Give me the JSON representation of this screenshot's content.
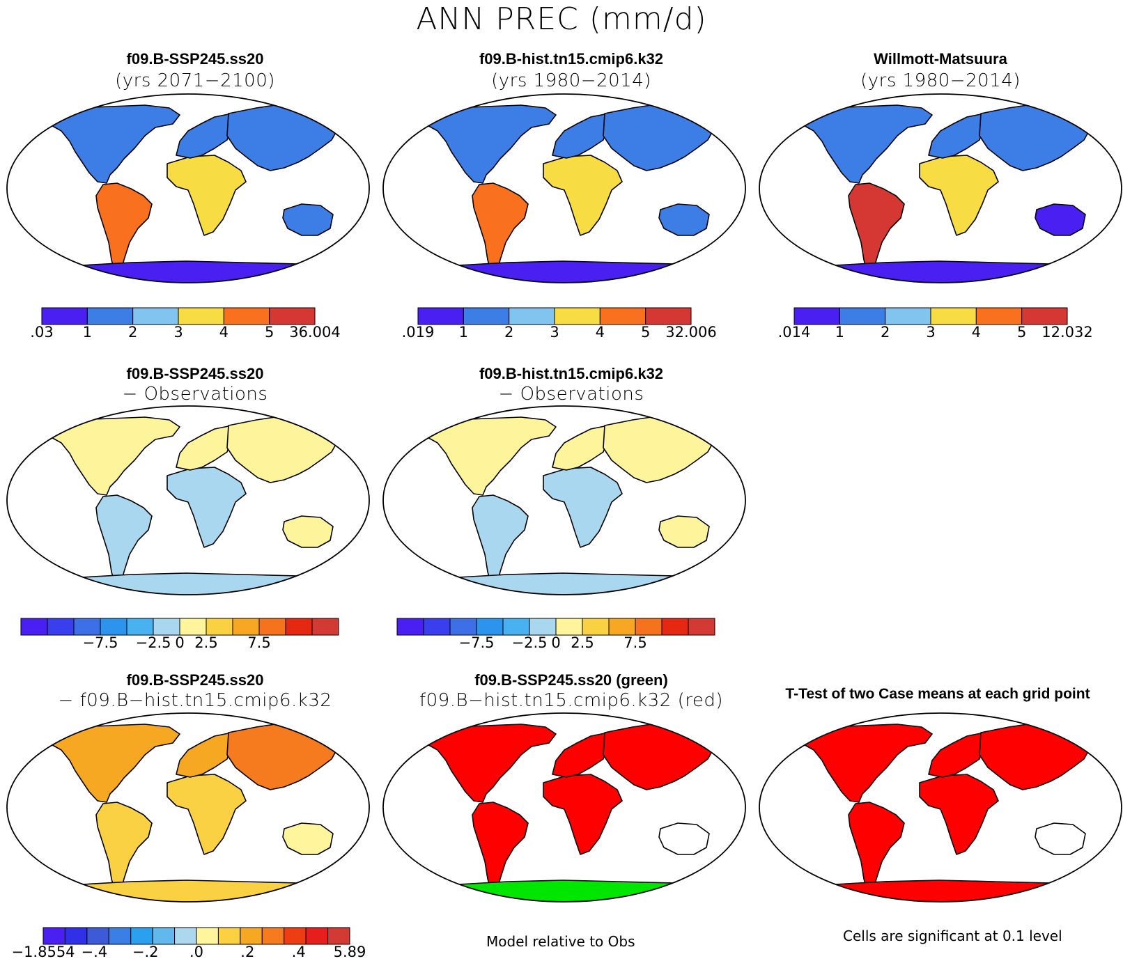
{
  "main_title": "ANN PREC (mm/d)",
  "colors": {
    "seq": [
      "#4a1ff2",
      "#3d7de6",
      "#80c4ef",
      "#f8dc44",
      "#f9701e",
      "#d53833"
    ],
    "div": [
      "#4a1ff2",
      "#3a3fee",
      "#3d6fe7",
      "#2d94ee",
      "#48b1f0",
      "#a9d7ef",
      "#fdf49c",
      "#fbd144",
      "#f6a823",
      "#f5731d",
      "#e42812",
      "#d33a33"
    ],
    "diff": [
      "#4a1ff2",
      "#3030e8",
      "#3d5ad9",
      "#3a7fe5",
      "#2aa0ef",
      "#61b8ec",
      "#acd7ee",
      "#fff59d",
      "#fbd144",
      "#f7a823",
      "#f57b1e",
      "#ee3d12",
      "#e51e1e",
      "#d33a33"
    ],
    "sig_red": "#ff0000",
    "sig_green": "#00e600"
  },
  "panels": [
    {
      "id": "p1",
      "title": "f09.B-SSP245.ss20",
      "subtitle": "(yrs 2071−2100)",
      "palette": "seq",
      "regions": {
        "na": 1,
        "sa": 4,
        "af": 3,
        "eu": 1,
        "as": 1,
        "au": 1,
        "an": 0
      },
      "colorbar": {
        "labels": [
          ".03",
          "1",
          "2",
          "3",
          "4",
          "5",
          "36.004"
        ]
      }
    },
    {
      "id": "p2",
      "title": "f09.B-hist.tn15.cmip6.k32",
      "subtitle": "(yrs 1980−2014)",
      "palette": "seq",
      "regions": {
        "na": 1,
        "sa": 4,
        "af": 3,
        "eu": 1,
        "as": 1,
        "au": 1,
        "an": 0
      },
      "colorbar": {
        "labels": [
          ".019",
          "1",
          "2",
          "3",
          "4",
          "5",
          "32.006"
        ]
      }
    },
    {
      "id": "p3",
      "title": "Willmott-Matsuura",
      "subtitle": "(yrs 1980−2014)",
      "palette": "seq",
      "regions": {
        "na": 1,
        "sa": 5,
        "af": 3,
        "eu": 1,
        "as": 1,
        "au": 0,
        "an": 0
      },
      "colorbar": {
        "labels": [
          ".014",
          "1",
          "2",
          "3",
          "4",
          "5",
          "12.032"
        ]
      }
    },
    {
      "id": "p4",
      "title": "f09.B-SSP245.ss20",
      "subtitle": "− Observations",
      "palette": "div",
      "regions": {
        "na": 6,
        "sa": 5,
        "af": 5,
        "eu": 6,
        "as": 6,
        "au": 6,
        "an": 5
      },
      "colorbar": {
        "labels": [
          "−7.5",
          "−2.5",
          "0",
          "2.5",
          "7.5"
        ]
      }
    },
    {
      "id": "p5",
      "title": "f09.B-hist.tn15.cmip6.k32",
      "subtitle": "− Observations",
      "palette": "div",
      "regions": {
        "na": 6,
        "sa": 5,
        "af": 5,
        "eu": 6,
        "as": 6,
        "au": 6,
        "an": 5
      },
      "colorbar": {
        "labels": [
          "−7.5",
          "−2.5",
          "0",
          "2.5",
          "7.5"
        ]
      }
    },
    {
      "id": "p6",
      "title": "f09.B-SSP245.ss20",
      "subtitle": "− f09.B−hist.tn15.cmip6.k32",
      "palette": "diff",
      "regions": {
        "na": 9,
        "sa": 8,
        "af": 8,
        "eu": 9,
        "as": 10,
        "au": 7,
        "an": 8
      },
      "colorbar": {
        "labels": [
          "−1.8554",
          "−.4",
          "−.2",
          ".0",
          ".2",
          ".4",
          "5.89"
        ]
      }
    },
    {
      "id": "p7",
      "title": "f09.B-SSP245.ss20 (green)",
      "subtitle": "f09.B−hist.tn15.cmip6.k32 (red)",
      "palette": "sig",
      "regions": {
        "na": "sig_red",
        "sa": "sig_red",
        "af": "sig_red",
        "eu": "sig_red",
        "as": "sig_red",
        "au": "white",
        "an": "sig_green"
      },
      "note": "Model relative to Obs"
    },
    {
      "id": "p8",
      "title": "T-Test of two Case means at each grid point",
      "subtitle": "",
      "palette": "sig",
      "regions": {
        "na": "sig_red",
        "sa": "sig_red",
        "af": "sig_red",
        "eu": "sig_red",
        "as": "sig_red",
        "au": "white",
        "an": "sig_red"
      },
      "note": "Cells are significant at 0.1 level"
    }
  ]
}
